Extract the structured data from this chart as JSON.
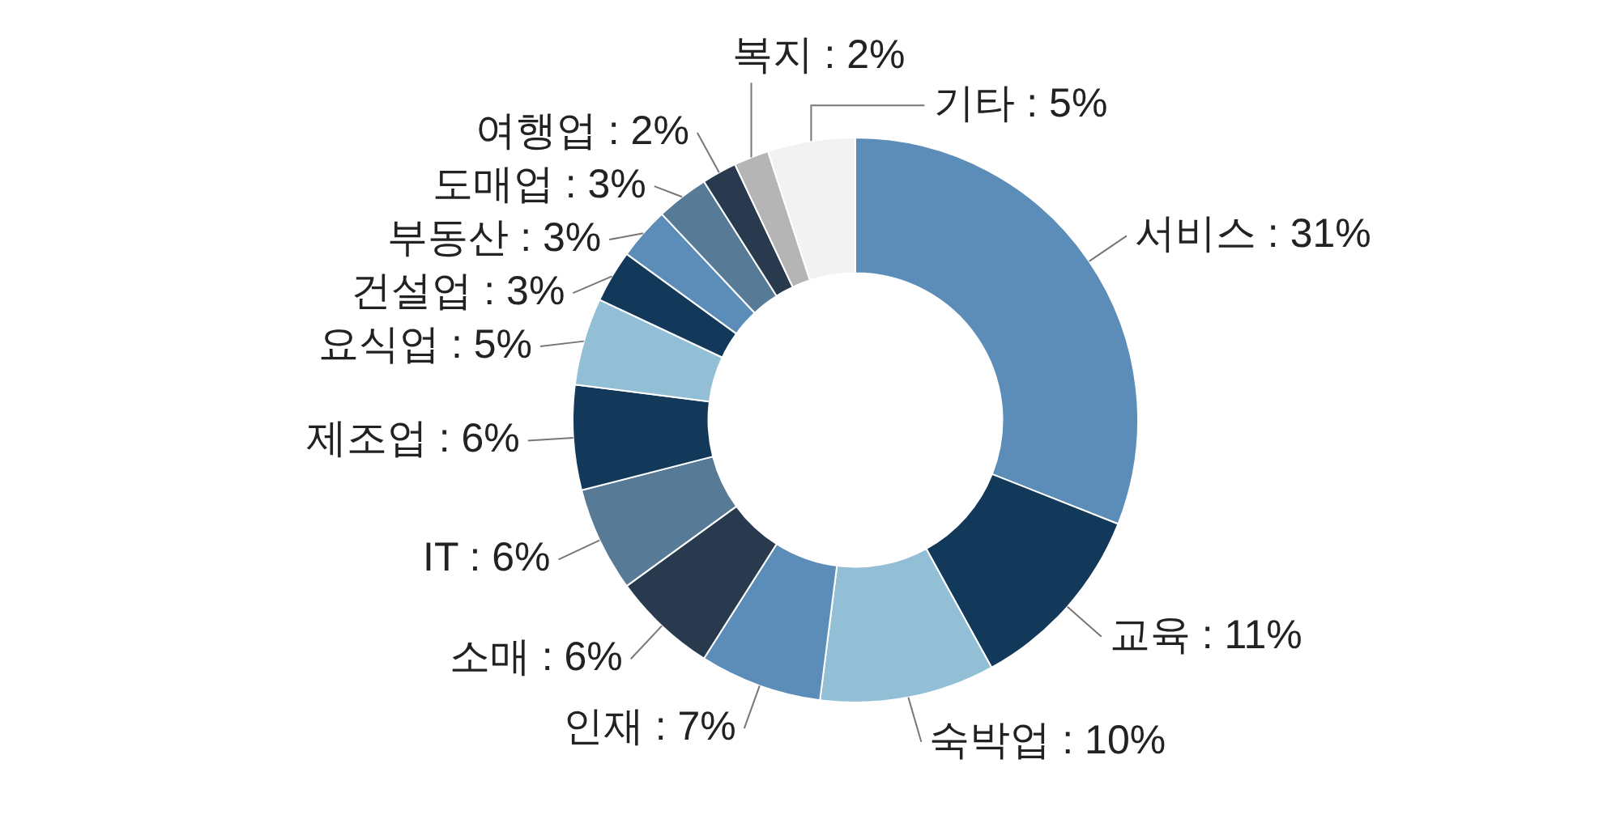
{
  "chart_data": {
    "type": "donut",
    "categories": [
      "서비스",
      "교육",
      "숙박업",
      "인재",
      "소매",
      "IT",
      "제조업",
      "요식업",
      "건설업",
      "부동산",
      "도매업",
      "여행업",
      "복지",
      "기타"
    ],
    "values": [
      31,
      11,
      10,
      7,
      6,
      6,
      6,
      5,
      3,
      3,
      3,
      2,
      2,
      5
    ],
    "value_labels": [
      "31%",
      "11%",
      "10%",
      "7%",
      "6%",
      "6%",
      "6%",
      "5%",
      "3%",
      "3%",
      "3%",
      "2%",
      "2%",
      "5%"
    ],
    "colors": [
      "#5b8db8",
      "#12385a",
      "#92bfd6",
      "#5b8db8",
      "#2a3a4e",
      "#577a96",
      "#12385a",
      "#92bfd6",
      "#12385a",
      "#5b8db8",
      "#577a96",
      "#2a3a4e",
      "#b5b5b5",
      "#f2f2f2"
    ],
    "legend": false
  }
}
